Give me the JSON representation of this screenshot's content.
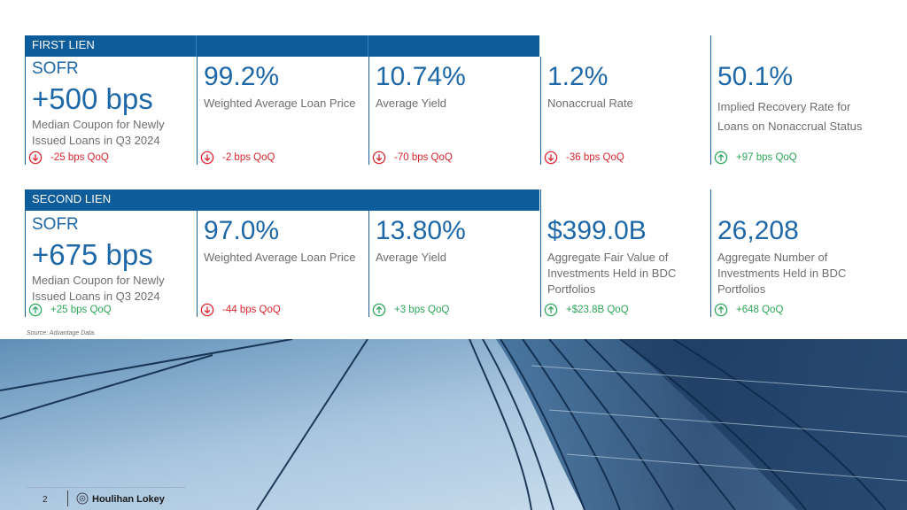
{
  "first_lien": {
    "label": "FIRST LIEN",
    "sofr_label": "SOFR",
    "sofr_value": "+500 bps",
    "sofr_desc": "Median Coupon for Newly Issued Loans in Q3 2024",
    "sofr_change": "-25 bps QoQ",
    "metrics": [
      {
        "value": "99.2%",
        "desc": "Weighted Average Loan Price",
        "change": "-2 bps QoQ",
        "direction": "down"
      },
      {
        "value": "10.74%",
        "desc": "Average Yield",
        "change": "-70 bps QoQ",
        "direction": "down"
      },
      {
        "value": "1.2%",
        "desc": "Nonaccrual Rate",
        "change": "-36 bps QoQ",
        "direction": "down"
      },
      {
        "value": "50.1%",
        "desc": "Implied Recovery Rate for Loans on Nonaccrual Status",
        "change": "+97 bps QoQ",
        "direction": "up"
      }
    ]
  },
  "second_lien": {
    "label": "SECOND LIEN",
    "sofr_label": "SOFR",
    "sofr_value": "+675 bps",
    "sofr_desc": "Median Coupon for Newly Issued Loans in Q3 2024",
    "sofr_change": "+25 bps QoQ",
    "metrics": [
      {
        "value": "97.0%",
        "desc": "Weighted Average Loan Price",
        "change": "-44 bps QoQ",
        "direction": "down"
      },
      {
        "value": "13.80%",
        "desc": "Average Yield",
        "change": "+3 bps QoQ",
        "direction": "up"
      },
      {
        "value": "$399.0B",
        "desc": "Aggregate Fair Value of Investments Held in BDC Portfolios",
        "change": "+$23.8B QoQ",
        "direction": "up"
      },
      {
        "value": "26,208",
        "desc": "Aggregate Number of Investments Held in BDC Portfolios",
        "change": "+648 QoQ",
        "direction": "up"
      }
    ]
  },
  "source_note": "Source: Advantage Data.",
  "footer": {
    "page_number": "2",
    "brand": "Houlihan Lokey"
  },
  "colors": {
    "accent": "#0f5c9a",
    "value_blue": "#1f68a8",
    "down_red": "#d9262d",
    "up_green": "#2ea65a"
  },
  "icons": {
    "down": "arrow-down-circle-icon",
    "up": "arrow-up-circle-icon"
  }
}
